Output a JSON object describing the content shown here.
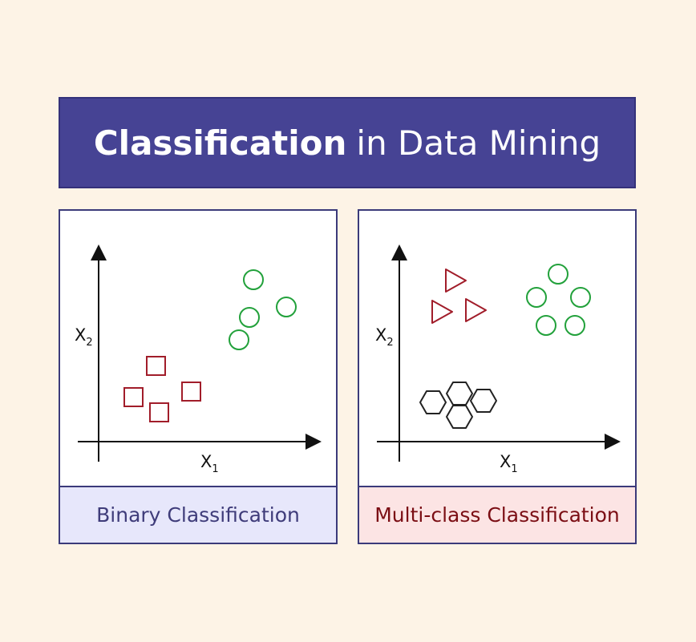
{
  "title": {
    "bold": "Classification",
    "rest": "in Data Mining"
  },
  "panels": [
    {
      "caption": "Binary Classification",
      "x_label": "X",
      "x_sub": "1",
      "y_label": "X",
      "y_sub": "2"
    },
    {
      "caption": "Multi-class Classification",
      "x_label": "X",
      "x_sub": "1",
      "y_label": "X",
      "y_sub": "2"
    }
  ],
  "colors": {
    "background": "#fdf3e6",
    "title_bg": "#464394",
    "square_class": "#a11d2a",
    "circle_class": "#22a13b",
    "triangle_class": "#a11d2a",
    "hexagon_class": "#222222",
    "binary_caption_bg": "#e7e7fb",
    "multiclass_caption_bg": "#fce4e4"
  }
}
